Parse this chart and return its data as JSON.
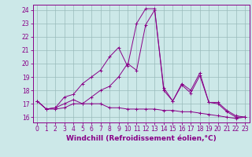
{
  "xlabel": "Windchill (Refroidissement éolien,°C)",
  "bg_color": "#cce8e8",
  "line_color": "#880088",
  "grid_color": "#99bbbb",
  "xlim": [
    -0.5,
    23.5
  ],
  "ylim": [
    15.6,
    24.4
  ],
  "yticks": [
    16,
    17,
    18,
    19,
    20,
    21,
    22,
    23,
    24
  ],
  "xticks": [
    0,
    1,
    2,
    3,
    4,
    5,
    6,
    7,
    8,
    9,
    10,
    11,
    12,
    13,
    14,
    15,
    16,
    17,
    18,
    19,
    20,
    21,
    22,
    23
  ],
  "series1_x": [
    0,
    1,
    2,
    3,
    4,
    5,
    6,
    7,
    8,
    9,
    10,
    11,
    12,
    13,
    14,
    15,
    16,
    17,
    18,
    19,
    20,
    21,
    22,
    23
  ],
  "series1_y": [
    17.2,
    16.6,
    16.6,
    16.7,
    17.0,
    17.0,
    17.0,
    17.0,
    16.7,
    16.7,
    16.6,
    16.6,
    16.6,
    16.6,
    16.5,
    16.5,
    16.4,
    16.4,
    16.3,
    16.2,
    16.1,
    16.0,
    15.9,
    16.0
  ],
  "series2_x": [
    0,
    1,
    2,
    3,
    4,
    5,
    6,
    7,
    8,
    9,
    10,
    11,
    12,
    13,
    14,
    15,
    16,
    17,
    18,
    19,
    20,
    21,
    22,
    23
  ],
  "series2_y": [
    17.2,
    16.6,
    16.7,
    17.5,
    17.7,
    18.5,
    19.0,
    19.5,
    20.5,
    21.2,
    19.8,
    23.0,
    24.1,
    24.1,
    18.0,
    17.2,
    18.5,
    18.0,
    19.3,
    17.1,
    17.1,
    16.5,
    16.1,
    16.0
  ],
  "series3_x": [
    0,
    1,
    2,
    3,
    4,
    5,
    6,
    7,
    8,
    9,
    10,
    11,
    12,
    13,
    14,
    15,
    16,
    17,
    18,
    19,
    20,
    21,
    22,
    23
  ],
  "series3_y": [
    17.2,
    16.6,
    16.7,
    17.0,
    17.3,
    17.0,
    17.5,
    18.0,
    18.3,
    19.0,
    20.0,
    19.5,
    22.9,
    24.0,
    18.2,
    17.2,
    18.4,
    17.8,
    19.1,
    17.1,
    17.0,
    16.4,
    16.0,
    16.0
  ],
  "tick_fontsize": 5.5,
  "label_fontsize": 6.5
}
